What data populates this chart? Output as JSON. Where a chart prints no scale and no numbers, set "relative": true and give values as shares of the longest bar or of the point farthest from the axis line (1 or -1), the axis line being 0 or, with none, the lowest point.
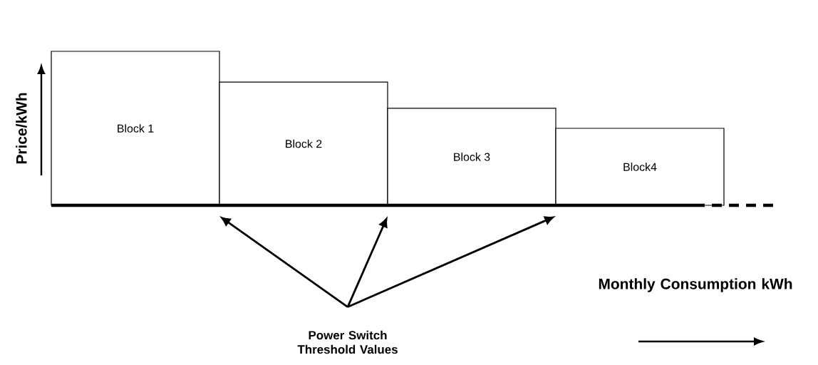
{
  "chart_data": {
    "type": "bar",
    "relative": true,
    "categories": [
      "Block 1",
      "Block 2",
      "Block 3",
      "Block4"
    ],
    "values": [
      1,
      0.8,
      0.63,
      0.5
    ],
    "color": "#ffffff",
    "xlabel": "Monthly Consumption kWh",
    "ylabel": "Price/kWh",
    "annotations": [
      "Power Switch Threshold Values"
    ]
  }
}
